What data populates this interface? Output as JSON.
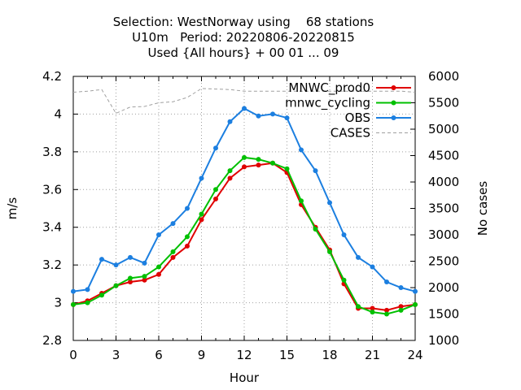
{
  "chart_data": {
    "type": "line",
    "title_lines": [
      "Selection: WestNorway using    68 stations",
      "U10m   Period: 20220806-20220815",
      "Used {All hours} + 00 01 ... 09"
    ],
    "xlabel": "Hour",
    "ylabel": "m/s",
    "y2label": "No cases",
    "xlim": [
      0,
      24
    ],
    "ylim": [
      2.8,
      4.2
    ],
    "y2lim": [
      1000,
      6000
    ],
    "xticks": [
      "0",
      "3",
      "6",
      "9",
      "12",
      "15",
      "18",
      "21",
      "24"
    ],
    "yticks": [
      "2.8",
      "3",
      "3.2",
      "3.4",
      "3.6",
      "3.8",
      "4",
      "4.2"
    ],
    "y2ticks": [
      "1000",
      "1500",
      "2000",
      "2500",
      "3000",
      "3500",
      "4000",
      "4500",
      "5000",
      "5500",
      "6000"
    ],
    "grid": true,
    "legend_position": "top-right",
    "x": [
      0,
      1,
      2,
      3,
      4,
      5,
      6,
      7,
      8,
      9,
      10,
      11,
      12,
      13,
      14,
      15,
      16,
      17,
      18,
      19,
      20,
      21,
      22,
      23,
      24
    ],
    "series": [
      {
        "name": "MNWC_prod0",
        "color": "#e00000",
        "axis": "y",
        "values": [
          2.99,
          3.01,
          3.05,
          3.09,
          3.11,
          3.12,
          3.15,
          3.24,
          3.3,
          3.44,
          3.55,
          3.66,
          3.72,
          3.73,
          3.74,
          3.69,
          3.52,
          3.4,
          3.28,
          3.1,
          2.97,
          2.97,
          2.96,
          2.98,
          2.99
        ]
      },
      {
        "name": "mnwc_cycling",
        "color": "#00c000",
        "axis": "y",
        "values": [
          2.99,
          3.0,
          3.04,
          3.09,
          3.13,
          3.14,
          3.19,
          3.27,
          3.35,
          3.47,
          3.6,
          3.7,
          3.77,
          3.76,
          3.74,
          3.71,
          3.54,
          3.39,
          3.27,
          3.12,
          2.98,
          2.95,
          2.94,
          2.96,
          2.99
        ]
      },
      {
        "name": "OBS",
        "color": "#1c7fe0",
        "axis": "y",
        "values": [
          3.06,
          3.07,
          3.23,
          3.2,
          3.24,
          3.21,
          3.36,
          3.42,
          3.5,
          3.66,
          3.82,
          3.96,
          4.03,
          3.99,
          4.0,
          3.98,
          3.81,
          3.7,
          3.53,
          3.36,
          3.24,
          3.19,
          3.11,
          3.08,
          3.06
        ]
      },
      {
        "name": "CASES",
        "color": "#a0a0a0",
        "axis": "y2",
        "values": [
          5700,
          5720,
          5750,
          5300,
          5420,
          5430,
          5500,
          5520,
          5600,
          5770,
          5760,
          5750,
          5720,
          5720,
          5720,
          5720,
          5720,
          5720,
          5720,
          5720,
          5720,
          5720,
          5720,
          5720,
          5700
        ]
      }
    ]
  }
}
